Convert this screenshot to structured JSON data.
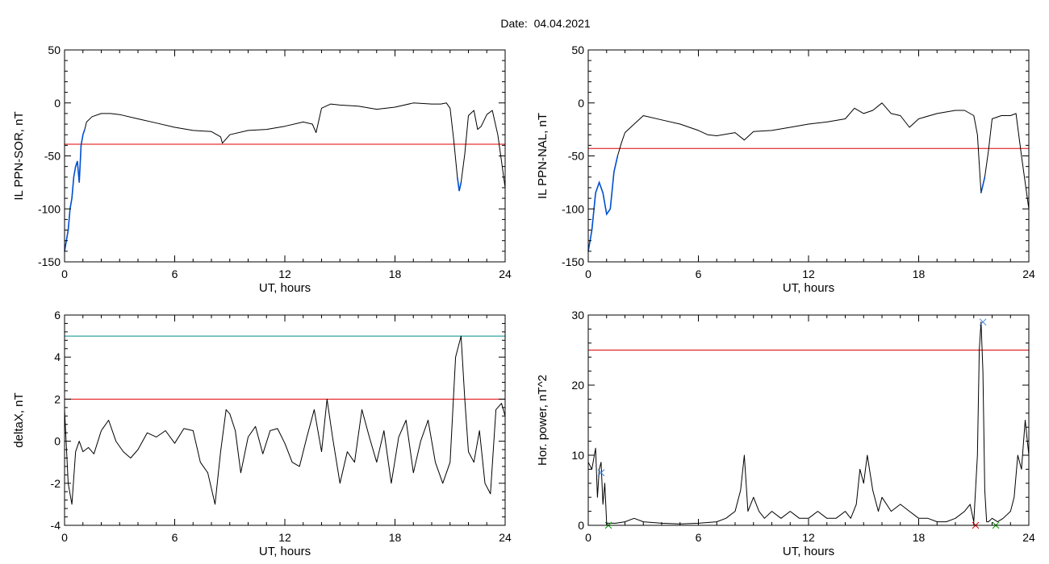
{
  "page": {
    "title": "Date:  04.04.2021"
  },
  "colors": {
    "series": "#000000",
    "threshold_red": "#e00000",
    "threshold_cyan": "#008b8b",
    "highlight_blue": "#0050d0",
    "marker_blue": "#4080d0",
    "marker_red": "#e00000",
    "marker_green": "#00a000"
  },
  "chart_data": [
    {
      "type": "line",
      "panel": "top-left",
      "ylabel": "IL PPN-SOR, nT",
      "xlabel": "UT, hours",
      "xlim": [
        0,
        24
      ],
      "ylim": [
        -150,
        50
      ],
      "xticks": [
        "0",
        "6",
        "12",
        "18",
        "24"
      ],
      "yticks": [
        "50",
        "0",
        "-50",
        "-100",
        "-150"
      ],
      "threshold": {
        "value": -39,
        "color": "red"
      },
      "series": [
        {
          "x": [
            0,
            0.2,
            0.3,
            0.4,
            0.5,
            0.6,
            0.7,
            0.8,
            0.9,
            1.0,
            1.1,
            1.2,
            1.5,
            2.0,
            2.5,
            3,
            4,
            5,
            6,
            7,
            8,
            8.5,
            8.6,
            9,
            10,
            11,
            12,
            13,
            13.5,
            13.7,
            14,
            14.5,
            15,
            16,
            17,
            18,
            19,
            20,
            20.5,
            20.8,
            21.0,
            21.2,
            21.4,
            21.5,
            21.6,
            21.8,
            22.0,
            22.3,
            22.5,
            22.7,
            23.0,
            23.3,
            23.6,
            23.8,
            24
          ],
          "y": [
            -140,
            -120,
            -100,
            -90,
            -70,
            -60,
            -55,
            -75,
            -40,
            -30,
            -25,
            -18,
            -13,
            -10,
            -10,
            -11,
            -15,
            -19,
            -23,
            -26,
            -27,
            -32,
            -38,
            -30,
            -26,
            -25,
            -22,
            -18,
            -20,
            -28,
            -5,
            -1,
            -2,
            -3,
            -6,
            -4,
            0,
            -1,
            -1,
            0,
            -5,
            -35,
            -70,
            -83,
            -75,
            -48,
            -12,
            -7,
            -25,
            -22,
            -11,
            -7,
            -30,
            -55,
            -80
          ],
          "highlight": [
            {
              "x_range": [
                0,
                1.1
              ],
              "color": "blue"
            },
            {
              "x_range": [
                21.3,
                21.7
              ],
              "color": "blue"
            }
          ]
        }
      ]
    },
    {
      "type": "line",
      "panel": "top-right",
      "ylabel": "IL PPN-NAL, nT",
      "xlabel": "UT, hours",
      "xlim": [
        0,
        24
      ],
      "ylim": [
        -150,
        50
      ],
      "xticks": [
        "0",
        "6",
        "12",
        "18",
        "24"
      ],
      "yticks": [
        "50",
        "0",
        "-50",
        "-100",
        "-150"
      ],
      "threshold": {
        "value": -43,
        "color": "red"
      },
      "series": [
        {
          "x": [
            0,
            0.2,
            0.4,
            0.6,
            0.8,
            1.0,
            1.2,
            1.4,
            1.6,
            1.8,
            2.0,
            2.5,
            3,
            4,
            5,
            6,
            6.5,
            7,
            8,
            8.5,
            9,
            10,
            11,
            12,
            13,
            14,
            14.5,
            15,
            15.5,
            16,
            16.5,
            17,
            17.5,
            18,
            19,
            20,
            20.5,
            21.0,
            21.2,
            21.4,
            21.6,
            21.8,
            22.0,
            22.5,
            23.0,
            23.3,
            23.6,
            24
          ],
          "y": [
            -140,
            -120,
            -85,
            -75,
            -85,
            -105,
            -100,
            -65,
            -50,
            -38,
            -28,
            -20,
            -12,
            -16,
            -20,
            -26,
            -30,
            -31,
            -28,
            -35,
            -27,
            -26,
            -23,
            -20,
            -18,
            -15,
            -5,
            -10,
            -7,
            0,
            -10,
            -12,
            -23,
            -15,
            -10,
            -7,
            -7,
            -12,
            -30,
            -85,
            -70,
            -45,
            -15,
            -12,
            -12,
            -10,
            -50,
            -100
          ],
          "highlight": [
            {
              "x_range": [
                0,
                1.6
              ],
              "color": "blue"
            },
            {
              "x_range": [
                21.3,
                21.7
              ],
              "color": "blue"
            }
          ]
        }
      ]
    },
    {
      "type": "line",
      "panel": "bottom-left",
      "ylabel": "deltaX, nT",
      "xlabel": "UT, hours",
      "xlim": [
        0,
        24
      ],
      "ylim": [
        -4,
        6
      ],
      "xticks": [
        "0",
        "6",
        "12",
        "18",
        "24"
      ],
      "yticks": [
        "6",
        "4",
        "2",
        "0",
        "-2",
        "-4"
      ],
      "thresholds": [
        {
          "value": 5,
          "color": "cyan"
        },
        {
          "value": 2,
          "color": "red"
        }
      ],
      "series": [
        {
          "x": [
            0,
            0.2,
            0.4,
            0.6,
            0.8,
            1.0,
            1.3,
            1.6,
            2.0,
            2.4,
            2.8,
            3.2,
            3.6,
            4.0,
            4.5,
            5.0,
            5.5,
            6.0,
            6.5,
            7.0,
            7.4,
            7.8,
            8.2,
            8.5,
            8.8,
            9.0,
            9.3,
            9.6,
            10.0,
            10.4,
            10.8,
            11.2,
            11.6,
            12.0,
            12.4,
            12.8,
            13.2,
            13.6,
            14.0,
            14.3,
            14.6,
            15.0,
            15.4,
            15.8,
            16.2,
            16.6,
            17.0,
            17.4,
            17.8,
            18.2,
            18.6,
            19.0,
            19.4,
            19.8,
            20.2,
            20.6,
            21.0,
            21.3,
            21.6,
            21.8,
            22.0,
            22.3,
            22.6,
            22.9,
            23.2,
            23.5,
            23.8,
            24.0
          ],
          "y": [
            1.5,
            -2.0,
            -3.0,
            -0.5,
            0,
            -0.5,
            -0.3,
            -0.6,
            0.5,
            1.0,
            0,
            -0.5,
            -0.8,
            -0.4,
            0.4,
            0.2,
            0.5,
            -0.1,
            0.6,
            0.5,
            -1.0,
            -1.5,
            -3.0,
            -0.5,
            1.5,
            1.3,
            0.5,
            -1.5,
            0.2,
            0.7,
            -0.6,
            0.5,
            0.6,
            -0.1,
            -1.0,
            -1.2,
            0.2,
            1.5,
            -0.5,
            2.0,
            0.2,
            -2.0,
            -0.5,
            -1.0,
            1.5,
            0.2,
            -1.0,
            0.5,
            -2.0,
            0.2,
            1.0,
            -1.5,
            0,
            1.0,
            -1.0,
            -2.0,
            -1.0,
            4.0,
            5.0,
            2.0,
            -0.5,
            -1.0,
            0.5,
            -2.0,
            -2.5,
            1.5,
            1.8,
            1.2
          ]
        }
      ]
    },
    {
      "type": "line",
      "panel": "bottom-right",
      "ylabel": "Hor. power, nT^2",
      "xlabel": "UT, hours",
      "xlim": [
        0,
        24
      ],
      "ylim": [
        0,
        30
      ],
      "xticks": [
        "0",
        "6",
        "12",
        "18",
        "24"
      ],
      "yticks": [
        "30",
        "20",
        "10",
        "0"
      ],
      "threshold": {
        "value": 25,
        "color": "red"
      },
      "series": [
        {
          "x": [
            0,
            0.2,
            0.4,
            0.5,
            0.6,
            0.7,
            0.8,
            0.9,
            1.0,
            1.5,
            2.0,
            2.5,
            3.0,
            4,
            5,
            6,
            7,
            7.5,
            8.0,
            8.3,
            8.5,
            8.7,
            9.0,
            9.3,
            9.6,
            10,
            10.5,
            11,
            11.5,
            12,
            12.5,
            13,
            13.5,
            14,
            14.3,
            14.6,
            14.8,
            15.0,
            15.2,
            15.5,
            15.8,
            16,
            16.5,
            17,
            17.5,
            18,
            18.5,
            19,
            19.5,
            20,
            20.5,
            20.8,
            21.0,
            21.2,
            21.3,
            21.4,
            21.5,
            21.6,
            21.7,
            21.8,
            22.0,
            22.3,
            22.6,
            23.0,
            23.2,
            23.4,
            23.6,
            23.8,
            24
          ],
          "y": [
            9,
            8,
            11,
            4,
            8,
            9,
            3,
            6,
            0.3,
            0.3,
            0.5,
            1,
            0.5,
            0.3,
            0.2,
            0.3,
            0.5,
            1,
            2,
            5,
            10,
            2,
            4,
            2,
            1,
            2,
            1,
            2,
            1,
            1,
            2,
            1,
            1,
            2,
            1,
            3,
            8,
            6,
            10,
            5,
            2,
            4,
            2,
            3,
            2,
            1,
            1,
            0.5,
            0.5,
            1,
            2,
            3,
            0.5,
            10,
            25,
            29,
            22,
            5,
            0.5,
            0.5,
            1,
            0.5,
            1,
            2,
            4,
            10,
            8,
            15,
            10
          ]
        }
      ],
      "markers": [
        {
          "x": 0.7,
          "y": 7.5,
          "color": "blue",
          "shape": "x"
        },
        {
          "x": 21.5,
          "y": 29,
          "color": "blue",
          "shape": "x"
        },
        {
          "x": 1.1,
          "y": 0,
          "color": "green",
          "shape": "x"
        },
        {
          "x": 21.1,
          "y": 0,
          "color": "red",
          "shape": "x"
        },
        {
          "x": 22.2,
          "y": 0,
          "color": "green",
          "shape": "x"
        }
      ]
    }
  ]
}
